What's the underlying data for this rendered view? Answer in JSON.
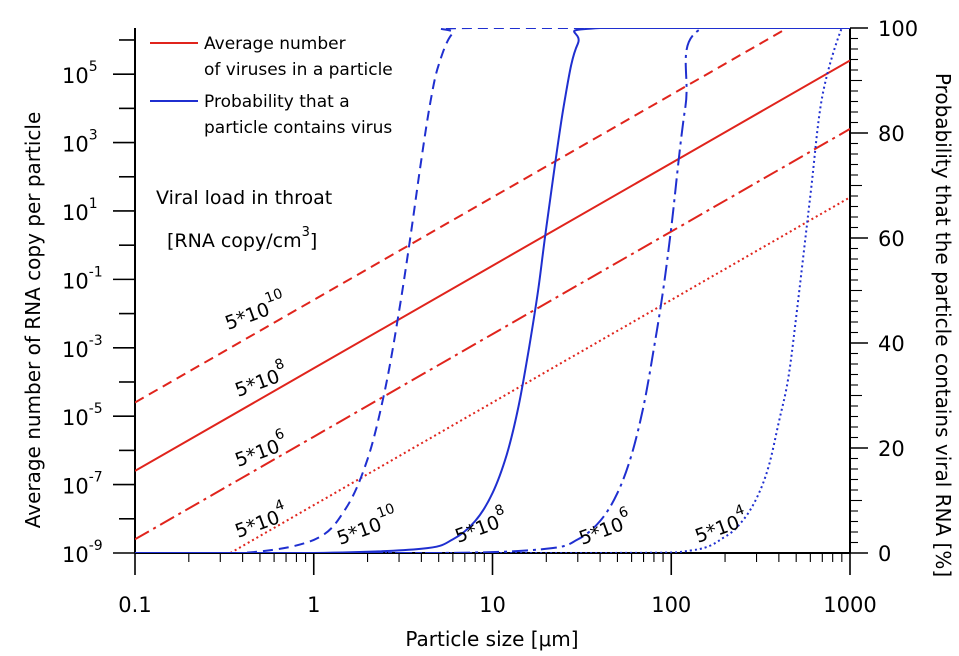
{
  "chart_data": {
    "type": "line",
    "xlabel": "Particle size [μm]",
    "ylabel_left": "Average number of RNA copy per particle",
    "ylabel_right": "Probability that the particle contains viral RNA [%]",
    "x_scale": "log",
    "xlim": [
      0.1,
      1000
    ],
    "x_ticks": [
      0.1,
      1,
      10,
      100,
      1000
    ],
    "x_tick_labels": [
      "0.1",
      "1",
      "10",
      "100",
      "1000"
    ],
    "y_left_scale": "log",
    "y_left_lim_exp": [
      -9,
      6.35
    ],
    "y_left_tick_exps": [
      -9,
      -7,
      -5,
      -3,
      -1,
      1,
      3,
      5
    ],
    "y_left_tick_labels": [
      "10",
      "10",
      "10",
      "10",
      "10",
      "10",
      "10",
      "10"
    ],
    "y_left_tick_superscripts": [
      "-9",
      "-7",
      "-5",
      "-3",
      "-1",
      "1",
      "3",
      "5"
    ],
    "y_right_lim": [
      0,
      100
    ],
    "y_right_ticks": [
      0,
      20,
      40,
      60,
      80,
      100
    ],
    "y_right_tick_labels": [
      "0",
      "20",
      "40",
      "60",
      "80",
      "100"
    ],
    "legend": {
      "position": "top-left",
      "entries": [
        {
          "line1": "Average number",
          "line2": "of viruses in a particle",
          "color": "#e0241c"
        },
        {
          "line1": "Probability that a",
          "line2": "particle contains virus",
          "color": "#1f2fd0"
        }
      ]
    },
    "annotation": {
      "line1": "Viral load in throat",
      "line2": "[RNA copy/cm",
      "line2_sup": "3",
      "line2_end": "]"
    },
    "series": [
      {
        "name": "Average number of viruses in a particle",
        "viral_load": "5*10^10",
        "axis": "left",
        "color": "#e0241c",
        "dash": "dashed",
        "x": [
          0.1,
          1,
          10,
          100,
          1000
        ],
        "log10_y": [
          -4.6,
          -1.6,
          1.4,
          4.4,
          7.4
        ]
      },
      {
        "name": "Average number of viruses in a particle",
        "viral_load": "5*10^8",
        "axis": "left",
        "color": "#e0241c",
        "dash": "solid",
        "x": [
          0.1,
          1,
          10,
          100,
          1000
        ],
        "log10_y": [
          -6.6,
          -3.6,
          -0.6,
          2.4,
          5.4
        ]
      },
      {
        "name": "Average number of viruses in a particle",
        "viral_load": "5*10^6",
        "axis": "left",
        "color": "#e0241c",
        "dash": "dashdot",
        "x": [
          0.1,
          1,
          10,
          100,
          1000
        ],
        "log10_y": [
          -8.6,
          -5.6,
          -2.6,
          0.4,
          3.4
        ]
      },
      {
        "name": "Average number of viruses in a particle",
        "viral_load": "5*10^4",
        "axis": "left",
        "color": "#e0241c",
        "dash": "dotted",
        "x": [
          0.1,
          1,
          10,
          100,
          1000
        ],
        "log10_y": [
          -10.6,
          -7.6,
          -4.6,
          -1.6,
          1.4
        ]
      },
      {
        "name": "Probability that a particle contains virus",
        "viral_load": "5*10^10",
        "axis": "right",
        "color": "#1f2fd0",
        "dash": "dashed",
        "x": [
          0.4,
          1,
          1.5,
          2,
          2.5,
          3,
          3.5,
          4,
          4.5,
          5,
          6,
          8
        ],
        "y": [
          0,
          2.5,
          8.3,
          17.9,
          31,
          46,
          61,
          75,
          86,
          93,
          99,
          100
        ]
      },
      {
        "name": "Probability that a particle contains virus",
        "viral_load": "5*10^8",
        "axis": "right",
        "color": "#1f2fd0",
        "dash": "solid",
        "x": [
          1,
          4,
          6,
          8,
          10,
          12,
          14,
          16,
          18,
          20,
          25,
          30,
          40
        ],
        "y": [
          0,
          0.8,
          2.6,
          6.1,
          11.4,
          18.7,
          28,
          39,
          50,
          62,
          85,
          97,
          100
        ]
      },
      {
        "name": "Probability that a particle contains virus",
        "viral_load": "5*10^6",
        "axis": "right",
        "color": "#1f2fd0",
        "dash": "dashdot",
        "x": [
          5,
          20,
          30,
          40,
          50,
          60,
          70,
          80,
          90,
          100,
          120,
          150
        ],
        "y": [
          0,
          0.8,
          2.6,
          6.1,
          11.4,
          18.7,
          28,
          39,
          50,
          62,
          85,
          100
        ]
      },
      {
        "name": "Probability that a particle contains virus",
        "viral_load": "5*10^4",
        "axis": "right",
        "color": "#1f2fd0",
        "dash": "dotted",
        "x": [
          40,
          130,
          200,
          250,
          300,
          350,
          400,
          450,
          500,
          600,
          700,
          900
        ],
        "y": [
          0,
          0.5,
          3.1,
          6.1,
          10.4,
          16.4,
          25,
          33,
          45,
          68,
          87,
          100
        ]
      }
    ],
    "red_line_labels": [
      {
        "text": "5*10",
        "sup": "10"
      },
      {
        "text": "5*10",
        "sup": "8"
      },
      {
        "text": "5*10",
        "sup": "6"
      },
      {
        "text": "5*10",
        "sup": "4"
      }
    ],
    "blue_curve_labels": [
      {
        "text": "5*10",
        "sup": "10"
      },
      {
        "text": "5*10",
        "sup": "8"
      },
      {
        "text": "5*10",
        "sup": "6"
      },
      {
        "text": "5*10",
        "sup": "4"
      }
    ]
  }
}
